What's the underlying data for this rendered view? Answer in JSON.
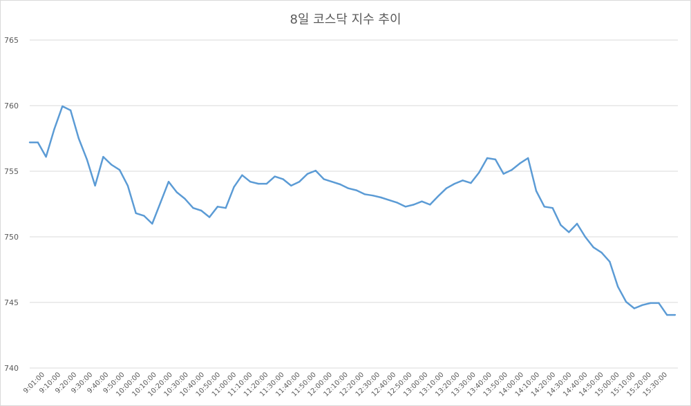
{
  "chart_data": {
    "type": "line",
    "title": "8일 코스닥 지수 추이",
    "xlabel": "",
    "ylabel": "",
    "ylim": [
      740,
      765
    ],
    "yticks": [
      740,
      745,
      750,
      755,
      760,
      765
    ],
    "grid": true,
    "legend": "none",
    "line_color": "#5b9bd5",
    "x_tick_labels": [
      "9:01:00",
      "9:10:00",
      "9:20:00",
      "9:30:00",
      "9:40:00",
      "9:50:00",
      "10:00:00",
      "10:10:00",
      "10:20:00",
      "10:30:00",
      "10:40:00",
      "10:50:00",
      "11:00:00",
      "11:10:00",
      "11:20:00",
      "11:30:00",
      "11:40:00",
      "11:50:00",
      "12:00:00",
      "12:10:00",
      "12:20:00",
      "12:30:00",
      "12:40:00",
      "12:50:00",
      "13:00:00",
      "13:10:00",
      "13:20:00",
      "13:30:00",
      "13:40:00",
      "13:50:00",
      "14:00:00",
      "14:10:00",
      "14:20:00",
      "14:30:00",
      "14:40:00",
      "14:50:00",
      "15:00:00",
      "15:10:00",
      "15:20:00",
      "15:30:00"
    ],
    "series": [
      {
        "values": [
          757.2,
          757.2,
          756.1,
          758.2,
          759.95,
          759.65,
          757.5,
          755.9,
          753.9,
          756.1,
          755.5,
          755.1,
          753.9,
          751.8,
          751.6,
          751.0,
          752.6,
          754.2,
          753.4,
          752.9,
          752.2,
          752.0,
          751.5,
          752.3,
          752.2,
          753.8,
          754.7,
          754.2,
          754.05,
          754.05,
          754.6,
          754.4,
          753.9,
          754.2,
          754.8,
          755.05,
          754.4,
          754.2,
          754.0,
          753.7,
          753.55,
          753.25,
          753.15,
          753.0,
          752.8,
          752.6,
          752.3,
          752.45,
          752.7,
          752.45,
          753.1,
          753.7,
          754.05,
          754.3,
          754.1,
          754.9,
          756.0,
          755.9,
          754.8,
          755.1,
          755.6,
          756.0,
          753.5,
          752.3,
          752.2,
          750.9,
          750.35,
          751.0,
          750.0,
          749.2,
          748.8,
          748.1,
          746.2,
          745.05,
          744.55,
          744.8,
          744.95,
          744.95,
          744.05,
          744.05
        ]
      }
    ]
  }
}
